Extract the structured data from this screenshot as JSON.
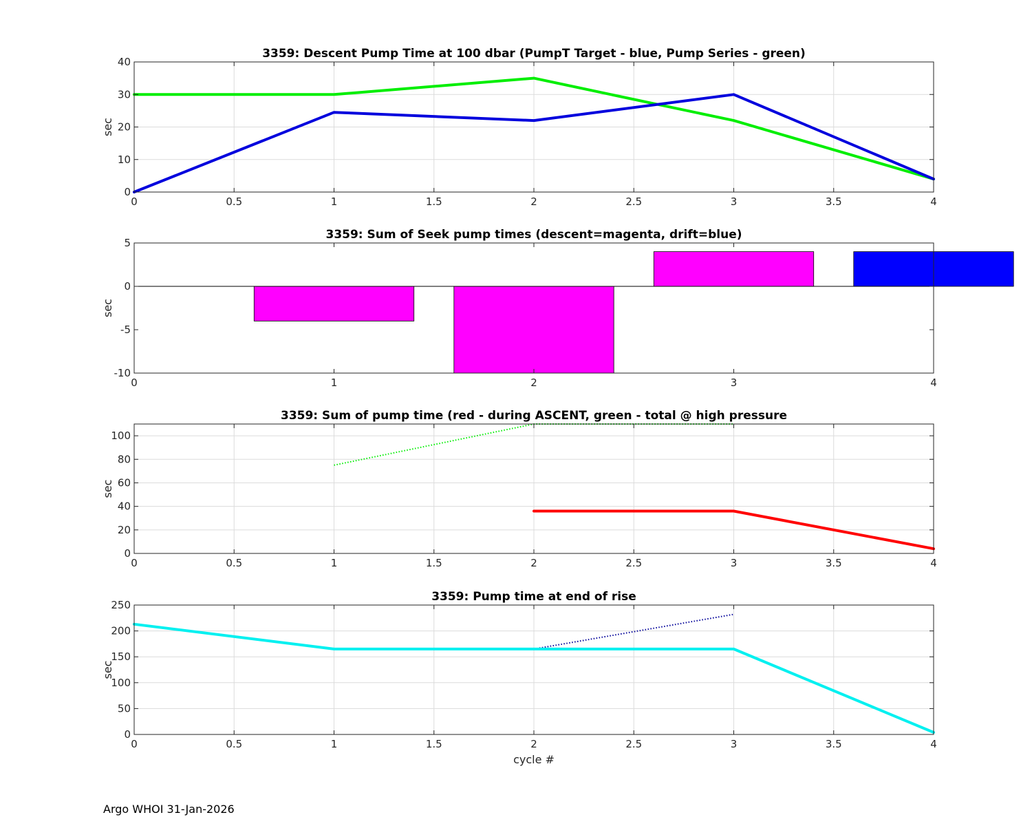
{
  "footer": "Argo WHOI 31-Jan-2026",
  "colors": {
    "green": "#00ee00",
    "blue": "#0000dd",
    "magenta": "#ff00ff",
    "barBlue": "#0000ff",
    "red": "#ff0000",
    "cyan": "#00f0f0",
    "dottedBlue": "#000099"
  },
  "chart_data": [
    {
      "type": "line",
      "title": "3359: Descent Pump Time at 100 dbar (PumpT Target - blue, Pump Series - green)",
      "xlabel": "",
      "ylabel": "sec",
      "xlim": [
        0,
        4
      ],
      "ylim": [
        0,
        40
      ],
      "xticks": [
        0,
        0.5,
        1,
        1.5,
        2,
        2.5,
        3,
        3.5,
        4
      ],
      "yticks": [
        0,
        10,
        20,
        30,
        40
      ],
      "grid": true,
      "series": [
        {
          "color": "green",
          "style": "solid",
          "width": 4,
          "x": [
            0,
            1,
            2,
            3,
            4
          ],
          "y": [
            30,
            30,
            35,
            22,
            4
          ]
        },
        {
          "color": "blue",
          "style": "solid",
          "width": 4,
          "x": [
            0,
            1,
            2,
            3,
            4
          ],
          "y": [
            0,
            24.5,
            22,
            30,
            4
          ]
        }
      ]
    },
    {
      "type": "bar",
      "title": "3359: Sum of Seek pump times (descent=magenta, drift=blue)",
      "xlabel": "",
      "ylabel": "sec",
      "xlim": [
        0,
        4
      ],
      "ylim": [
        -10,
        5
      ],
      "xticks": [
        0,
        1,
        2,
        3,
        4
      ],
      "yticks": [
        -10,
        -5,
        0,
        5
      ],
      "grid": false,
      "bar_width": 0.8,
      "series": [
        {
          "color": "magenta",
          "x": [
            1,
            2,
            3
          ],
          "values": [
            -4,
            -10,
            4
          ]
        },
        {
          "color": "barBlue",
          "x": [
            4
          ],
          "values": [
            4
          ]
        }
      ]
    },
    {
      "type": "line",
      "title": "3359: Sum of pump time (red - during ASCENT, green - total @ high pressure",
      "xlabel": "",
      "ylabel": "sec",
      "xlim": [
        0,
        4
      ],
      "ylim": [
        0,
        110
      ],
      "xticks": [
        0,
        0.5,
        1,
        1.5,
        2,
        2.5,
        3,
        3.5,
        4
      ],
      "yticks": [
        0,
        20,
        40,
        60,
        80,
        100
      ],
      "grid": true,
      "series": [
        {
          "color": "green",
          "style": "dotted",
          "width": 2,
          "x": [
            1,
            2,
            3
          ],
          "y": [
            75,
            110,
            110
          ]
        },
        {
          "color": "red",
          "style": "solid",
          "width": 4,
          "x": [
            2,
            3,
            4
          ],
          "y": [
            36,
            36,
            4
          ]
        }
      ]
    },
    {
      "type": "line",
      "title": "3359: Pump time at end of rise",
      "xlabel": "cycle #",
      "ylabel": "sec",
      "xlim": [
        0,
        4
      ],
      "ylim": [
        0,
        250
      ],
      "xticks": [
        0,
        0.5,
        1,
        1.5,
        2,
        2.5,
        3,
        3.5,
        4
      ],
      "yticks": [
        0,
        50,
        100,
        150,
        200,
        250
      ],
      "grid": true,
      "series": [
        {
          "color": "dottedBlue",
          "style": "dotted",
          "width": 2,
          "x": [
            2,
            3
          ],
          "y": [
            165,
            232
          ]
        },
        {
          "color": "cyan",
          "style": "solid",
          "width": 4,
          "x": [
            0,
            1,
            2,
            3,
            4
          ],
          "y": [
            213,
            165,
            165,
            165,
            4
          ]
        }
      ]
    }
  ]
}
